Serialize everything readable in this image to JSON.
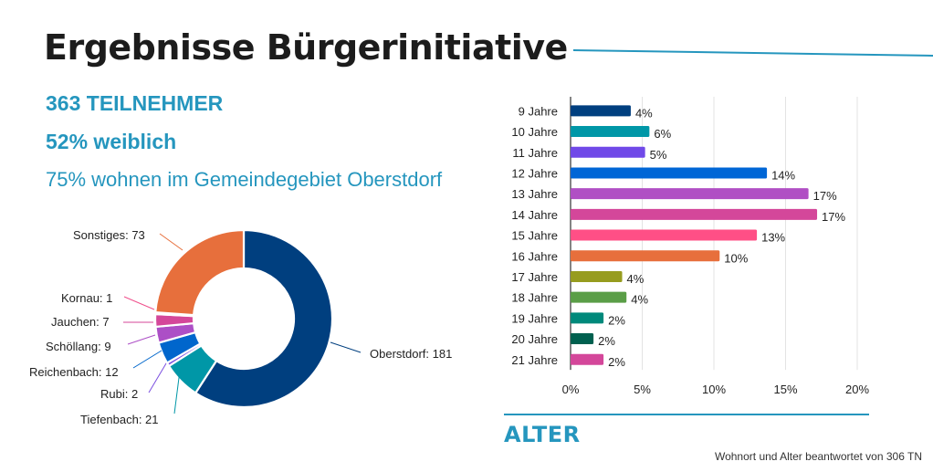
{
  "header": {
    "title": "Ergebnisse Bürgerinitiative",
    "accent_color": "#2596be"
  },
  "stats": {
    "participants": "363 TEILNEHMER",
    "female": "52% weiblich",
    "residents": "75% wohnen im Gemeindegebiet Oberstdorf"
  },
  "section_label": "ALTER",
  "footnote": "Wohnort und Alter beantwortet von 306 TN",
  "chart_data": [
    {
      "type": "pie",
      "variant": "donut",
      "title": "",
      "slices": [
        {
          "label": "Oberstdorf",
          "value": 181,
          "display": "Oberstdorf: 181",
          "color": "#003f7f"
        },
        {
          "label": "Tiefenbach",
          "value": 21,
          "display": "Tiefenbach: 21",
          "color": "#0097a7"
        },
        {
          "label": "Rubi",
          "value": 2,
          "display": "Rubi: 2",
          "color": "#7b4fe0"
        },
        {
          "label": "Reichenbach",
          "value": 12,
          "display": "Reichenbach: 12",
          "color": "#0066cc"
        },
        {
          "label": "Schöllang",
          "value": 9,
          "display": "Schöllang: 9",
          "color": "#ac4fc6"
        },
        {
          "label": "Jauchen",
          "value": 7,
          "display": "Jauchen: 7",
          "color": "#d4479a"
        },
        {
          "label": "Kornau",
          "value": 1,
          "display": "Kornau: 1",
          "color": "#f0508c"
        },
        {
          "label": "Sonstiges",
          "value": 73,
          "display": "Sonstiges: 73",
          "color": "#e76f3c"
        }
      ]
    },
    {
      "type": "bar",
      "orientation": "horizontal",
      "title": "",
      "xlabel": "",
      "ylabel": "",
      "categories": [
        "9 Jahre",
        "10 Jahre",
        "11 Jahre",
        "12 Jahre",
        "13 Jahre",
        "14 Jahre",
        "15 Jahre",
        "16 Jahre",
        "17 Jahre",
        "18 Jahre",
        "19 Jahre",
        "20 Jahre",
        "21 Jahre"
      ],
      "values": [
        4.2,
        5.5,
        5.2,
        13.7,
        16.6,
        17.2,
        13.0,
        10.4,
        3.6,
        3.9,
        2.3,
        1.6,
        2.3
      ],
      "data_labels": [
        "4%",
        "6%",
        "5%",
        "14%",
        "17%",
        "17%",
        "13%",
        "10%",
        "4%",
        "4%",
        "2%",
        "2%",
        "2%"
      ],
      "colors": [
        "#003f7f",
        "#0097a7",
        "#7049e8",
        "#0066d6",
        "#b04fc4",
        "#d4479a",
        "#ff4f86",
        "#e76f3c",
        "#979c1f",
        "#5a9e47",
        "#00897b",
        "#00604f",
        "#d4479a"
      ],
      "xlim": [
        0,
        20
      ],
      "xticks": [
        "0%",
        "5%",
        "10%",
        "15%",
        "20%"
      ],
      "xtick_values": [
        0,
        5,
        10,
        15,
        20
      ],
      "grid": true,
      "legend": "none"
    }
  ]
}
